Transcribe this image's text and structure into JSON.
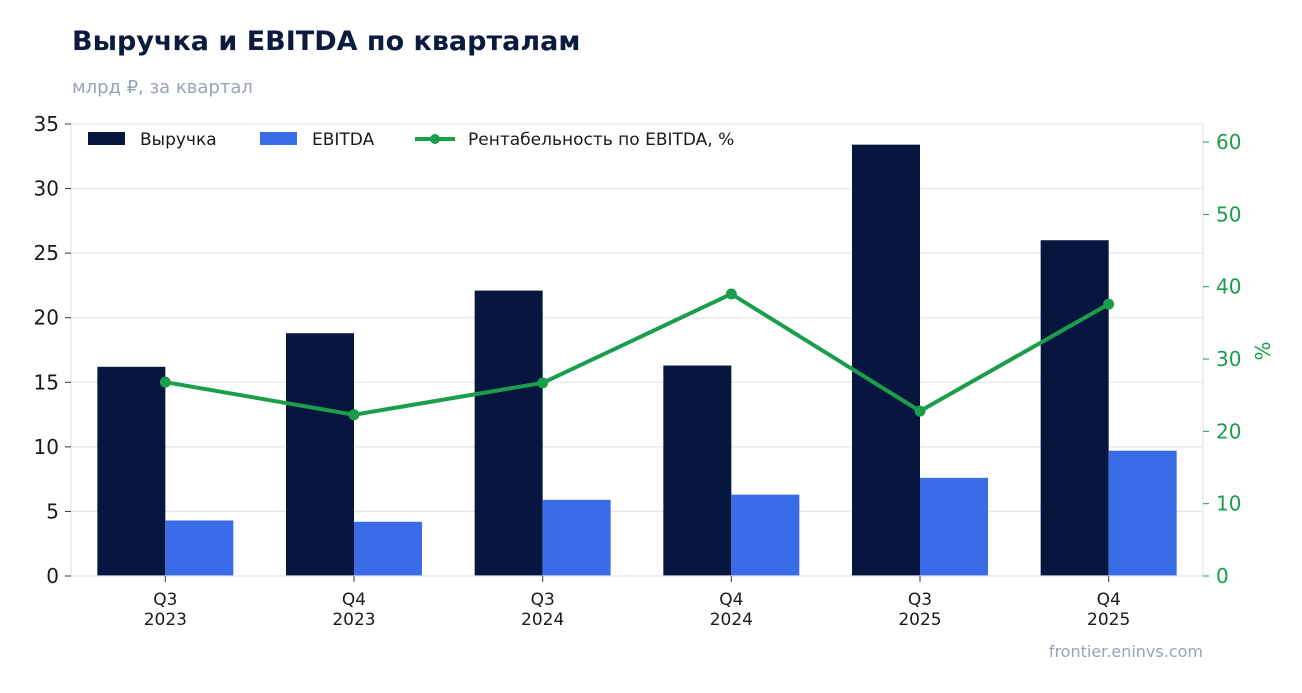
{
  "header": {
    "title": "Выручка и EBITDA по кварталам",
    "subtitle": "млрд ₽, за квартал"
  },
  "footer": {
    "source": "frontier.eninvs.com"
  },
  "colors": {
    "revenue": "#06163f",
    "ebitda": "#3b6ce8",
    "margin": "#1a9e4b",
    "grid": "#e3e6f1",
    "text": "#1a1a1a"
  },
  "chart_data": {
    "type": "bar",
    "categories": [
      "Q3\n2023",
      "Q4\n2023",
      "Q3\n2024",
      "Q4\n2024",
      "Q3\n2025",
      "Q4\n2025"
    ],
    "series": [
      {
        "name": "Выручка",
        "type": "bar",
        "axis": "left",
        "values": [
          16.2,
          18.8,
          22.1,
          16.3,
          33.4,
          26.0
        ]
      },
      {
        "name": "EBITDA",
        "type": "bar",
        "axis": "left",
        "values": [
          4.3,
          4.2,
          5.9,
          6.3,
          7.6,
          9.7
        ]
      },
      {
        "name": "Рентабельность по EBITDA, %",
        "type": "line",
        "axis": "right",
        "values": [
          26.8,
          22.3,
          26.7,
          39.0,
          22.8,
          37.6
        ]
      }
    ],
    "ylim": [
      0,
      35
    ],
    "y_ticks": [
      0,
      5,
      10,
      15,
      20,
      25,
      30,
      35
    ],
    "y2lim": [
      0,
      62.5
    ],
    "y2_ticks": [
      0,
      10,
      20,
      30,
      40,
      50,
      60
    ],
    "y2label": "%",
    "grid": true,
    "legend_position": "top-left"
  }
}
